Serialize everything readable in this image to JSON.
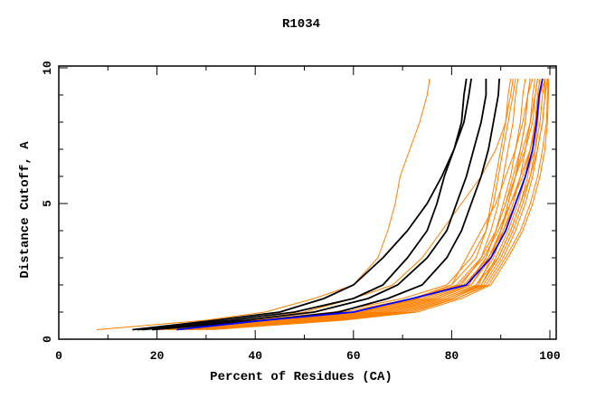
{
  "chart_data": {
    "type": "line",
    "title": "R1034",
    "xlabel": "Percent of Residues (CA)",
    "ylabel": "Distance Cutoff, A",
    "xlim": [
      0,
      101.3
    ],
    "ylim": [
      0,
      10
    ],
    "x_ticks": [
      "0",
      "20",
      "40",
      "60",
      "80",
      "100"
    ],
    "y_ticks": [
      "0",
      "5",
      "10"
    ],
    "grid": false,
    "colors": {
      "other": "#ff8000",
      "highlight": "#000000",
      "best": "#0000ff"
    },
    "cutoffs": [
      0.35,
      0.7,
      1,
      1.5,
      2,
      3,
      4,
      5,
      6,
      7,
      8,
      9,
      9.6
    ],
    "series": [
      {
        "name": "orange-1",
        "group": "other",
        "x": [
          22,
          42,
          58,
          72,
          80,
          85,
          87,
          88,
          89,
          90,
          91,
          91.5,
          92
        ]
      },
      {
        "name": "orange-2",
        "group": "other",
        "x": [
          23,
          45,
          62,
          74,
          82,
          86,
          88,
          89.5,
          90.5,
          91.5,
          92.5,
          93,
          93.5
        ]
      },
      {
        "name": "orange-3",
        "group": "other",
        "x": [
          24,
          48,
          64,
          76,
          83,
          87,
          89,
          90.5,
          92,
          93,
          94,
          94.5,
          95
        ]
      },
      {
        "name": "orange-4",
        "group": "other",
        "x": [
          25,
          50,
          66,
          77,
          84,
          88,
          90,
          91.5,
          93,
          94,
          95,
          95.5,
          96
        ]
      },
      {
        "name": "orange-5",
        "group": "other",
        "x": [
          26,
          52,
          68,
          78,
          85,
          88.5,
          90.5,
          92.5,
          94,
          95,
          96,
          96.5,
          97
        ]
      },
      {
        "name": "orange-6",
        "group": "other",
        "x": [
          27,
          53,
          69,
          79,
          86,
          89,
          91.5,
          93.5,
          95,
          96,
          97,
          97.5,
          98
        ]
      },
      {
        "name": "orange-7",
        "group": "other",
        "x": [
          28,
          55,
          70,
          80,
          86.5,
          90,
          92.5,
          94.5,
          96,
          97,
          97.5,
          98,
          99
        ]
      },
      {
        "name": "orange-8",
        "group": "other",
        "x": [
          30,
          57,
          72,
          81,
          87,
          90.5,
          93,
          95,
          96.5,
          97.5,
          98.5,
          99,
          99
        ]
      },
      {
        "name": "orange-9",
        "group": "other",
        "x": [
          22,
          44,
          60,
          73,
          81,
          86,
          89,
          91,
          93,
          95,
          96.5,
          97,
          97.5
        ]
      },
      {
        "name": "orange-10",
        "group": "other",
        "x": [
          24,
          47,
          63,
          75,
          82.5,
          87.5,
          90,
          92,
          94,
          96,
          97.5,
          98,
          98.5
        ]
      },
      {
        "name": "orange-11",
        "group": "other",
        "x": [
          26,
          51,
          67,
          78,
          85,
          89.5,
          92,
          94,
          96,
          97.5,
          98.5,
          99,
          99.5
        ]
      },
      {
        "name": "orange-12",
        "group": "other",
        "x": [
          29,
          56,
          71,
          81,
          87.5,
          91,
          94,
          96,
          97.5,
          98.5,
          99.3,
          99.5,
          99.5
        ]
      },
      {
        "name": "orange-13",
        "group": "other",
        "x": [
          21,
          40,
          56,
          70,
          79,
          84,
          87,
          88.5,
          89.5,
          90.5,
          91.5,
          92.5,
          93
        ]
      },
      {
        "name": "orange-14",
        "group": "other",
        "x": [
          25,
          49,
          65,
          76,
          83.5,
          87,
          89,
          91,
          92.5,
          94,
          95,
          95.5,
          96.5
        ]
      },
      {
        "name": "orange-15",
        "group": "other",
        "x": [
          27,
          54,
          70,
          80,
          86,
          89.5,
          92,
          94,
          95.5,
          96.5,
          97,
          97.5,
          98
        ]
      },
      {
        "name": "orange-16",
        "group": "other",
        "x": [
          23,
          46,
          61,
          74,
          81.5,
          86.5,
          89.5,
          92,
          94.5,
          96,
          97,
          98,
          98.5
        ]
      },
      {
        "name": "orange-17",
        "group": "other",
        "x": [
          28,
          54,
          69,
          79,
          85.5,
          88,
          90,
          91.5,
          93,
          94.5,
          96,
          97,
          97.5
        ]
      },
      {
        "name": "orange-18",
        "group": "other",
        "x": [
          31,
          58,
          73,
          82,
          88,
          91.5,
          94.5,
          96.5,
          98,
          99,
          99.5,
          99.7,
          99.7
        ]
      },
      {
        "name": "orange-19",
        "group": "other",
        "x": [
          24,
          46,
          62,
          73,
          80,
          83,
          86,
          89,
          91,
          93,
          94.5,
          95.5,
          96
        ]
      },
      {
        "name": "orange-20",
        "group": "other",
        "x": [
          26,
          50,
          66,
          77,
          84,
          87.5,
          90.5,
          93,
          95,
          97,
          98,
          98.5,
          99
        ]
      },
      {
        "name": "orange-21",
        "group": "other",
        "x": [
          20,
          38,
          50,
          60,
          68,
          74,
          78,
          82,
          86,
          89,
          91,
          92,
          92.5
        ]
      },
      {
        "name": "orange-outlier",
        "group": "other",
        "x": [
          7.7,
          30,
          42,
          52,
          60,
          65,
          67,
          68.5,
          69.5,
          71.5,
          73.5,
          75,
          75.5
        ]
      },
      {
        "name": "black-1",
        "group": "highlight",
        "x": [
          15,
          32,
          45,
          54,
          60,
          66,
          71,
          75,
          78,
          80.5,
          82,
          82.5,
          83
        ]
      },
      {
        "name": "black-2",
        "group": "highlight",
        "x": [
          16,
          35,
          48,
          60,
          66,
          71,
          75,
          77,
          78.5,
          80.5,
          82.5,
          83.5,
          84
        ]
      },
      {
        "name": "black-3",
        "group": "highlight",
        "x": [
          17,
          38,
          52,
          63,
          69,
          75,
          79,
          81,
          83,
          84.5,
          86,
          87,
          87
        ]
      },
      {
        "name": "black-4",
        "group": "highlight",
        "x": [
          19,
          42,
          57,
          67,
          74,
          79,
          82,
          84,
          86,
          87.5,
          88.5,
          89.5,
          89.7
        ]
      },
      {
        "name": "blue-best",
        "group": "best",
        "x": [
          24,
          42,
          60,
          72,
          83,
          88,
          91,
          93,
          95,
          96.5,
          97.3,
          97.8,
          98.5
        ]
      }
    ]
  }
}
